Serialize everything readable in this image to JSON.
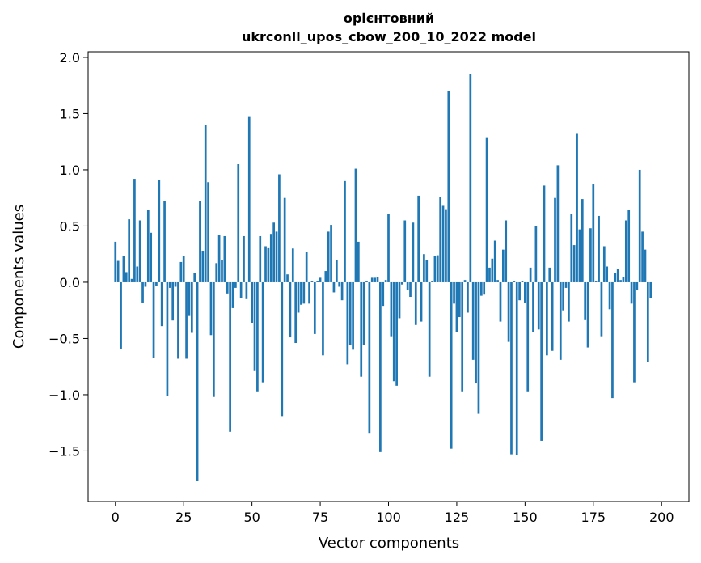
{
  "chart_data": {
    "type": "bar",
    "title_line1": "орієнтовний",
    "title_line2": "ukrconll_upos_cbow_200_10_2022 model",
    "xlabel": "Vector components",
    "ylabel": "Components values",
    "xlim": [
      -10,
      210
    ],
    "ylim": [
      -1.95,
      2.05
    ],
    "xticks": [
      0,
      25,
      50,
      75,
      100,
      125,
      150,
      175,
      200
    ],
    "yticks": [
      -1.5,
      -1.0,
      -0.5,
      0.0,
      0.5,
      1.0,
      1.5,
      2.0
    ],
    "ytick_labels": [
      "−1.5",
      "−1.0",
      "−0.5",
      "0.0",
      "0.5",
      "1.0",
      "1.5",
      "2.0"
    ],
    "bar_color": "#1f77b4",
    "grid": false,
    "values": [
      0.36,
      0.19,
      -0.59,
      0.23,
      0.09,
      0.56,
      0.03,
      0.92,
      0.14,
      0.55,
      -0.18,
      -0.04,
      0.64,
      0.44,
      -0.67,
      -0.03,
      0.91,
      -0.39,
      0.72,
      -1.01,
      -0.05,
      -0.34,
      -0.04,
      -0.68,
      0.18,
      0.23,
      -0.68,
      -0.3,
      -0.45,
      0.08,
      -1.77,
      0.72,
      0.28,
      1.4,
      0.89,
      -0.47,
      -1.02,
      0.17,
      0.42,
      0.2,
      0.41,
      -0.1,
      -1.33,
      -0.23,
      -0.05,
      1.05,
      -0.14,
      0.41,
      -0.15,
      1.47,
      -0.36,
      -0.79,
      -0.97,
      0.41,
      -0.89,
      0.32,
      0.31,
      0.43,
      0.53,
      0.45,
      0.96,
      -1.19,
      0.75,
      0.07,
      -0.49,
      0.3,
      -0.54,
      -0.27,
      -0.2,
      -0.19,
      0.27,
      -0.19,
      0.01,
      -0.46,
      0.01,
      0.04,
      -0.65,
      0.1,
      0.45,
      0.51,
      -0.09,
      0.2,
      -0.04,
      -0.16,
      0.9,
      -0.73,
      -0.56,
      -0.6,
      1.01,
      0.36,
      -0.84,
      -0.56,
      0.01,
      -1.34,
      0.04,
      0.04,
      0.05,
      -1.51,
      -0.21,
      0.02,
      0.61,
      -0.48,
      -0.88,
      -0.92,
      -0.32,
      -0.02,
      0.55,
      -0.07,
      -0.13,
      0.53,
      -0.38,
      0.77,
      -0.35,
      0.25,
      0.2,
      -0.84,
      0.01,
      0.23,
      0.24,
      0.76,
      0.68,
      0.65,
      1.7,
      -1.48,
      -0.19,
      -0.44,
      -0.31,
      -0.97,
      0.02,
      -0.27,
      1.85,
      -0.69,
      -0.9,
      -1.17,
      -0.12,
      -0.11,
      1.29,
      0.13,
      0.21,
      0.37,
      0.02,
      -0.35,
      0.29,
      0.55,
      -0.53,
      -1.53,
      0.01,
      -1.54,
      -0.16,
      0.01,
      -0.18,
      -0.97,
      0.13,
      -0.44,
      0.5,
      -0.42,
      -1.41,
      0.86,
      -0.65,
      0.13,
      -0.61,
      0.75,
      1.04,
      -0.69,
      -0.25,
      -0.05,
      -0.35,
      0.61,
      0.33,
      1.32,
      0.47,
      0.74,
      -0.33,
      -0.58,
      0.48,
      0.87,
      0.01,
      0.59,
      -0.48,
      0.32,
      0.14,
      -0.24,
      -1.03,
      0.08,
      0.12,
      0.02,
      0.05,
      0.55,
      0.64,
      -0.19,
      -0.89,
      -0.07,
      1.0,
      0.45,
      0.29,
      -0.71,
      -0.14
    ]
  }
}
